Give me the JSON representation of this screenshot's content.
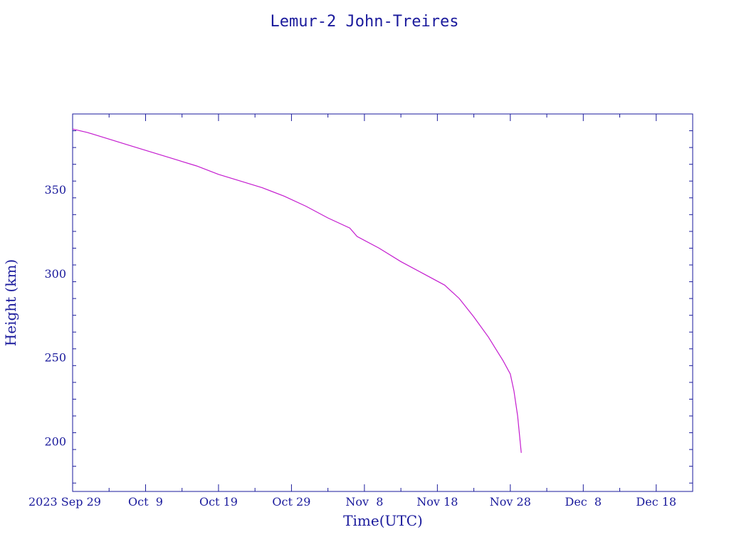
{
  "chart_data": {
    "type": "line",
    "title": "Lemur-2 John-Treires",
    "xlabel": "Time(UTC)",
    "ylabel": "Height (km)",
    "xlim": [
      "2023-09-29",
      "2023-12-23"
    ],
    "ylim": [
      170,
      395
    ],
    "x_ticks": [
      {
        "date": "2023-09-29",
        "label": "2023 Sep 29"
      },
      {
        "date": "2023-10-09",
        "label": "Oct  9"
      },
      {
        "date": "2023-10-19",
        "label": "Oct 19"
      },
      {
        "date": "2023-10-29",
        "label": "Oct 29"
      },
      {
        "date": "2023-11-08",
        "label": "Nov  8"
      },
      {
        "date": "2023-11-18",
        "label": "Nov 18"
      },
      {
        "date": "2023-11-28",
        "label": "Nov 28"
      },
      {
        "date": "2023-12-08",
        "label": "Dec  8"
      },
      {
        "date": "2023-12-18",
        "label": "Dec 18"
      }
    ],
    "y_ticks": [
      200,
      250,
      300,
      350
    ],
    "grid": false,
    "colors": {
      "axes": "#1a1a9c",
      "series": "#c41ccf"
    },
    "series": [
      {
        "x": [
          "2023-09-29",
          "2023-10-01",
          "2023-10-04",
          "2023-10-07",
          "2023-10-10",
          "2023-10-13",
          "2023-10-16",
          "2023-10-19",
          "2023-10-22",
          "2023-10-25",
          "2023-10-28",
          "2023-10-31",
          "2023-11-03",
          "2023-11-06",
          "2023-11-07",
          "2023-11-10",
          "2023-11-13",
          "2023-11-16",
          "2023-11-19",
          "2023-11-21",
          "2023-11-23",
          "2023-11-25",
          "2023-11-26",
          "2023-11-27",
          "2023-11-28",
          "2023-11-28T12:00",
          "2023-11-29",
          "2023-11-29T12:00"
        ],
        "y": [
          386,
          384,
          380,
          376,
          372,
          368,
          364,
          359,
          355,
          351,
          346,
          340,
          333,
          327,
          322,
          315,
          307,
          300,
          293,
          285,
          274,
          262,
          255,
          248,
          240,
          230,
          215,
          193
        ]
      }
    ]
  }
}
